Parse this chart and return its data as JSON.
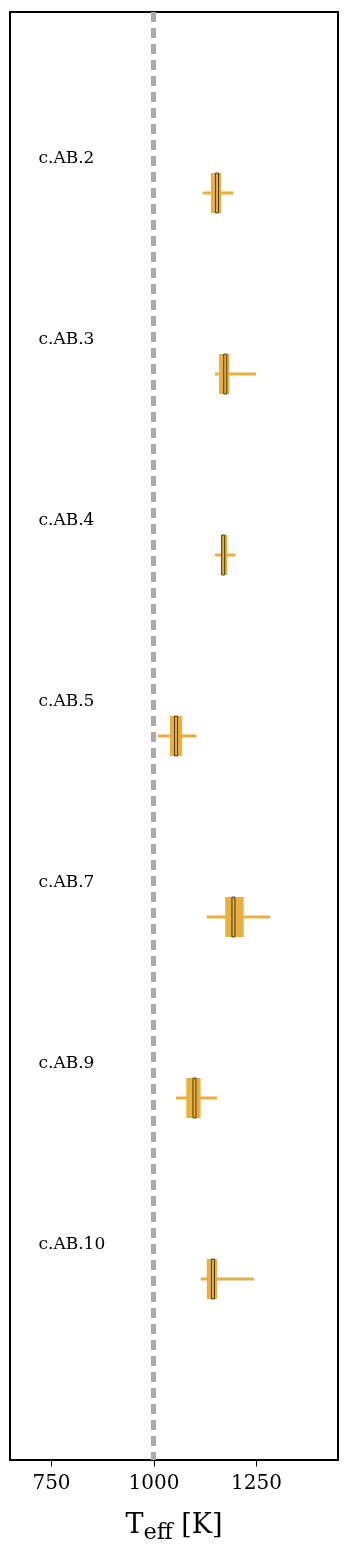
{
  "chart_data": {
    "type": "box",
    "orientation": "horizontal",
    "xlabel": "T$_{eff}$ [K]",
    "categories": [
      "c.AB.2",
      "c.AB.3",
      "c.AB.4",
      "c.AB.5",
      "c.AB.7",
      "c.AB.9",
      "c.AB.10"
    ],
    "xlim": [
      650,
      1450
    ],
    "xticks": [
      750,
      1000,
      1250
    ],
    "grid": false,
    "series": [
      {
        "color": "#e8b040",
        "boxes": [
          {
            "low": 1120,
            "q1": 1140,
            "median": 1155,
            "q3": 1165,
            "high": 1195
          },
          {
            "low": 1150,
            "q1": 1160,
            "median": 1175,
            "q3": 1185,
            "high": 1250
          },
          {
            "low": 1150,
            "q1": 1165,
            "median": 1170,
            "q3": 1180,
            "high": 1200
          },
          {
            "low": 1010,
            "q1": 1040,
            "median": 1055,
            "q3": 1070,
            "high": 1105
          },
          {
            "low": 1130,
            "q1": 1175,
            "median": 1195,
            "q3": 1220,
            "high": 1285
          },
          {
            "low": 1055,
            "q1": 1080,
            "median": 1100,
            "q3": 1115,
            "high": 1155
          },
          {
            "low": 1115,
            "q1": 1130,
            "median": 1145,
            "q3": 1155,
            "high": 1245
          }
        ]
      }
    ],
    "ref_lines": [
      {
        "axis": "x",
        "value": 1000,
        "color": "#aaaaaa",
        "line_style": "dashed"
      }
    ]
  }
}
